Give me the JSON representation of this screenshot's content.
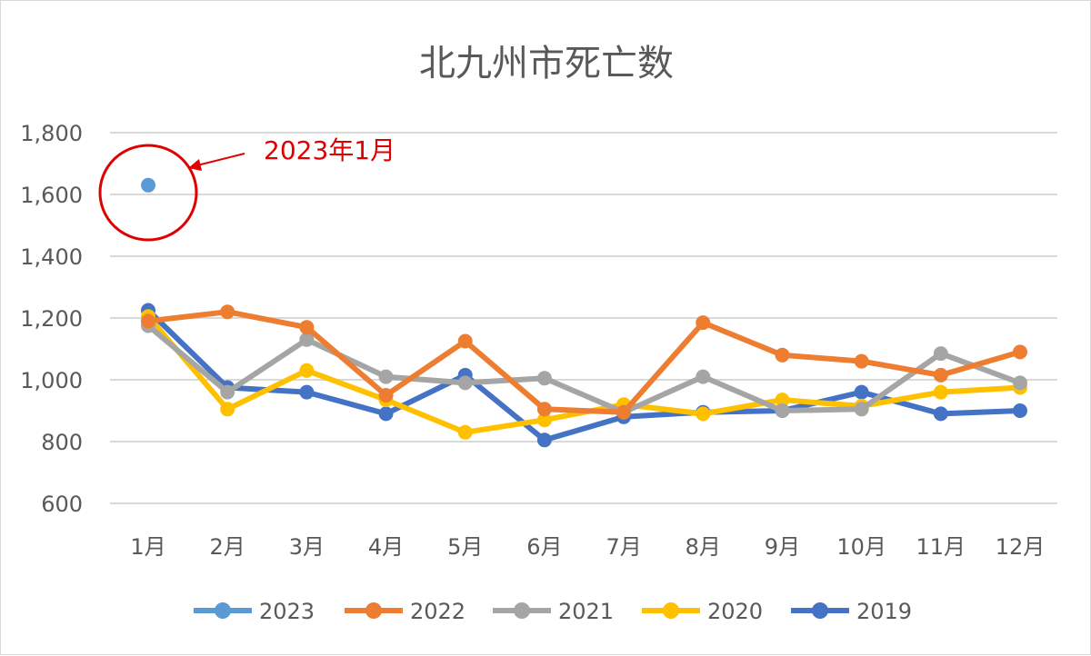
{
  "chart_data": {
    "type": "line",
    "title": "北九州市死亡数",
    "categories": [
      "1月",
      "2月",
      "3月",
      "4月",
      "5月",
      "6月",
      "7月",
      "8月",
      "9月",
      "10月",
      "11月",
      "12月"
    ],
    "ylim": [
      600,
      1800
    ],
    "yticks": [
      600,
      800,
      1000,
      1200,
      1400,
      1600,
      1800
    ],
    "ytick_labels": [
      "600",
      "800",
      "1,000",
      "1,200",
      "1,400",
      "1,600",
      "1,800"
    ],
    "grid": true,
    "legend_position": "bottom",
    "series": [
      {
        "name": "2023",
        "color": "#5b9bd5",
        "values": [
          1630,
          null,
          null,
          null,
          null,
          null,
          null,
          null,
          null,
          null,
          null,
          null
        ]
      },
      {
        "name": "2022",
        "color": "#ed7d31",
        "values": [
          1190,
          1220,
          1170,
          950,
          1125,
          905,
          895,
          1185,
          1080,
          1060,
          1015,
          1090
        ]
      },
      {
        "name": "2021",
        "color": "#a5a5a5",
        "values": [
          1175,
          960,
          1130,
          1010,
          990,
          1005,
          895,
          1010,
          900,
          905,
          1085,
          990
        ]
      },
      {
        "name": "2020",
        "color": "#ffc000",
        "values": [
          1205,
          905,
          1030,
          935,
          830,
          870,
          920,
          890,
          935,
          915,
          960,
          975
        ]
      },
      {
        "name": "2019",
        "color": "#4472c4",
        "values": [
          1225,
          975,
          960,
          890,
          1015,
          805,
          880,
          895,
          900,
          960,
          890,
          900
        ]
      }
    ],
    "annotation": {
      "text": "2023年1月",
      "color": "#e00000"
    }
  }
}
